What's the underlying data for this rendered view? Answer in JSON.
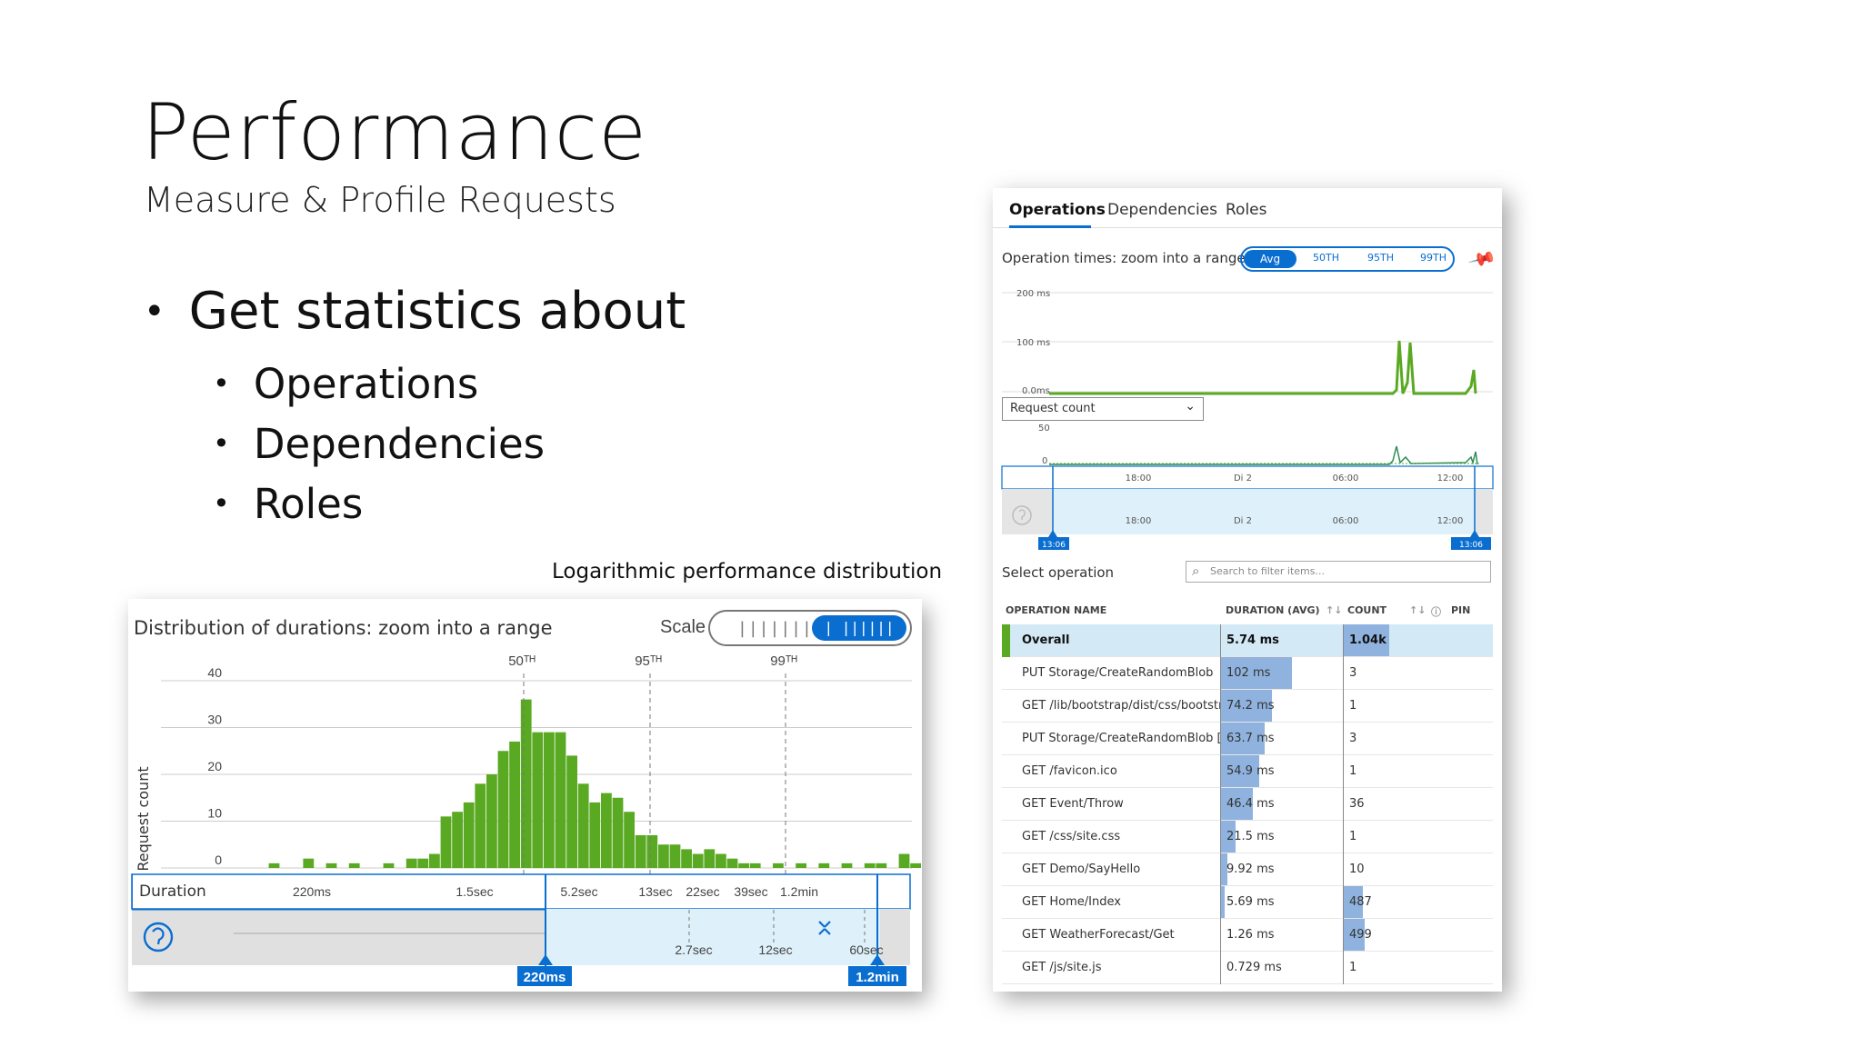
{
  "slide": {
    "title": "Performance",
    "subtitle": "Measure & Profile Requests",
    "bullet_main": "Get statistics about",
    "sub_items": [
      "Operations",
      "Dependencies",
      "Roles"
    ]
  },
  "distribution_caption": "Logarithmic performance distribution",
  "distribution_panel": {
    "title": "Distribution of durations: zoom into a range",
    "scale_label": "Scale",
    "scale_linear_glyph": "|||||||",
    "scale_log_glyph": "| ||||||",
    "duration_label": "Duration",
    "start_marker": "220ms",
    "end_marker": "1.2min",
    "reset_icon": "reset-zoom-icon",
    "collapse_icon": "collapse-icon",
    "lower_ticks": [
      "2.7sec",
      "12sec",
      "60sec"
    ]
  },
  "chart_data": {
    "type": "bar",
    "title": "Distribution of durations: zoom into a range",
    "xlabel": "Duration",
    "ylabel": "Request count",
    "ylim": [
      0,
      40
    ],
    "y_ticks": [
      "40",
      "30",
      "20",
      "10",
      "0"
    ],
    "x_tick_labels": [
      "220ms",
      "1.5sec",
      "5.2sec",
      "13sec",
      "22sec",
      "39sec",
      "1.2min"
    ],
    "percentiles": [
      {
        "label": "50TH",
        "value": "2.8sec"
      },
      {
        "label": "95TH",
        "value": "13sec"
      },
      {
        "label": "99TH",
        "value": "1.1min"
      }
    ],
    "values": [
      0,
      1,
      0,
      0,
      2,
      0,
      1,
      0,
      1,
      0,
      0,
      1,
      0,
      2,
      2,
      3,
      11,
      12,
      14,
      18,
      20,
      25,
      27,
      36,
      29,
      29,
      29,
      24,
      18,
      14,
      16,
      15,
      12,
      7,
      7,
      5,
      5,
      4,
      3,
      4,
      3,
      2,
      1,
      1,
      0,
      1,
      0,
      1,
      0,
      1,
      0,
      1,
      0,
      1,
      1,
      0,
      3,
      1,
      0,
      1,
      0
    ]
  },
  "ops_panel": {
    "tabs": [
      "Operations",
      "Dependencies",
      "Roles"
    ],
    "operation_times_label": "Operation times: zoom into a range",
    "pct_options": [
      "Avg",
      "50TH",
      "95TH",
      "99TH"
    ],
    "pin_icon": "pin-icon",
    "y_ticks_top": [
      "200 ms",
      "100 ms",
      "0.0ms"
    ],
    "request_select": "Request count",
    "y_ticks_bottom": [
      "50",
      "0"
    ],
    "time_ticks": [
      "18:00",
      "Di 2",
      "06:00",
      "12:00"
    ],
    "start_time": "13:06",
    "end_time": "13:06",
    "select_operation_label": "Select operation",
    "search_placeholder": "Search to filter items...",
    "col_name": "OPERATION NAME",
    "col_duration": "DURATION (AVG)",
    "col_count": "COUNT",
    "col_pin": "PIN",
    "sort_icon": "↑↓",
    "rows": [
      {
        "name": "Overall",
        "duration": "5.74 ms",
        "duration_frac": 0,
        "count": "1.04k",
        "count_frac": 0.3
      },
      {
        "name": "PUT Storage/CreateRandomBlob",
        "duration": "102 ms",
        "duration_frac": 0.58,
        "count": "3",
        "count_frac": 0
      },
      {
        "name": "GET /lib/bootstrap/dist/css/bootstr...",
        "duration": "74.2 ms",
        "duration_frac": 0.42,
        "count": "1",
        "count_frac": 0
      },
      {
        "name": "PUT Storage/CreateRandomBlob [fi...",
        "duration": "63.7 ms",
        "duration_frac": 0.36,
        "count": "3",
        "count_frac": 0
      },
      {
        "name": "GET /favicon.ico",
        "duration": "54.9 ms",
        "duration_frac": 0.31,
        "count": "1",
        "count_frac": 0
      },
      {
        "name": "GET Event/Throw",
        "duration": "46.4 ms",
        "duration_frac": 0.26,
        "count": "36",
        "count_frac": 0
      },
      {
        "name": "GET /css/site.css",
        "duration": "21.5 ms",
        "duration_frac": 0.12,
        "count": "1",
        "count_frac": 0
      },
      {
        "name": "GET Demo/SayHello",
        "duration": "9.92 ms",
        "duration_frac": 0.05,
        "count": "10",
        "count_frac": 0
      },
      {
        "name": "GET Home/Index",
        "duration": "5.69 ms",
        "duration_frac": 0.03,
        "count": "487",
        "count_frac": 0.13
      },
      {
        "name": "GET WeatherForecast/Get",
        "duration": "1.26 ms",
        "duration_frac": 0,
        "count": "499",
        "count_frac": 0.14
      },
      {
        "name": "GET /js/site.js",
        "duration": "0.729 ms",
        "duration_frac": 0,
        "count": "1",
        "count_frac": 0
      }
    ]
  },
  "colors": {
    "accent": "#0a6ed1",
    "bar_green": "#5aa923",
    "duration_bar": "#8fb3de",
    "selection_bg": "#d3e9f6"
  }
}
